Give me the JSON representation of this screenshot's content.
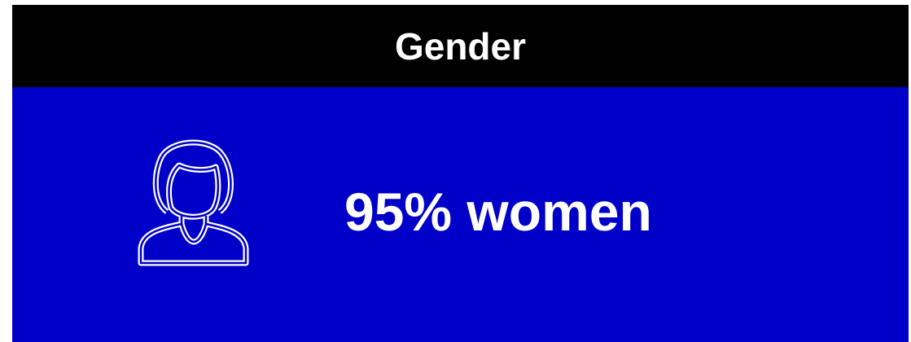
{
  "header": {
    "title": "Gender"
  },
  "stat": {
    "text": "95% women"
  }
}
